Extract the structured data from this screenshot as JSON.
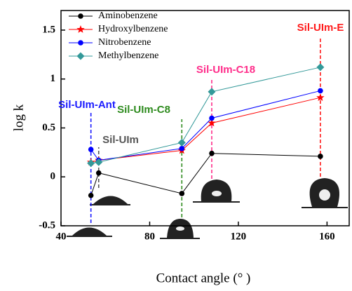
{
  "chart_data": {
    "type": "line",
    "x_label": "Contact angle (° )",
    "y_label": "log k",
    "x": [
      53.5,
      57,
      94.5,
      108,
      157
    ],
    "series": [
      {
        "name": "Aminobenzene",
        "color": "#000000",
        "marker": "circle",
        "values": [
          -0.19,
          0.04,
          -0.17,
          0.24,
          0.21
        ]
      },
      {
        "name": "Hydroxylbenzene",
        "color": "#ff0000",
        "marker": "star",
        "values": [
          0.15,
          0.17,
          0.27,
          0.55,
          0.81
        ]
      },
      {
        "name": "Nitrobenzene",
        "color": "#0000ff",
        "marker": "circle",
        "values": [
          0.28,
          0.17,
          0.29,
          0.6,
          0.88
        ]
      },
      {
        "name": "Methylbenzene",
        "color": "#339999",
        "marker": "diamond",
        "values": [
          0.14,
          0.15,
          0.35,
          0.87,
          1.12
        ]
      }
    ],
    "annotations": [
      {
        "text": "Sil-UIm-Ant",
        "color": "#1a1aff"
      },
      {
        "text": "Sil-UIm",
        "color": "#555555"
      },
      {
        "text": "Sil-UIm-C8",
        "color": "#2e8b1e"
      },
      {
        "text": "Sil-UIm-C18",
        "color": "#ff2d8a"
      },
      {
        "text": "Sil-UIm-E",
        "color": "#ff1a1a"
      }
    ],
    "xlim": [
      40,
      170
    ],
    "xticks": [
      40,
      80,
      120,
      160
    ],
    "ylim": [
      -0.5,
      1.7
    ],
    "yticks": [
      -0.5,
      0.0,
      0.5,
      1.0,
      1.5
    ],
    "legend": "upper left"
  }
}
